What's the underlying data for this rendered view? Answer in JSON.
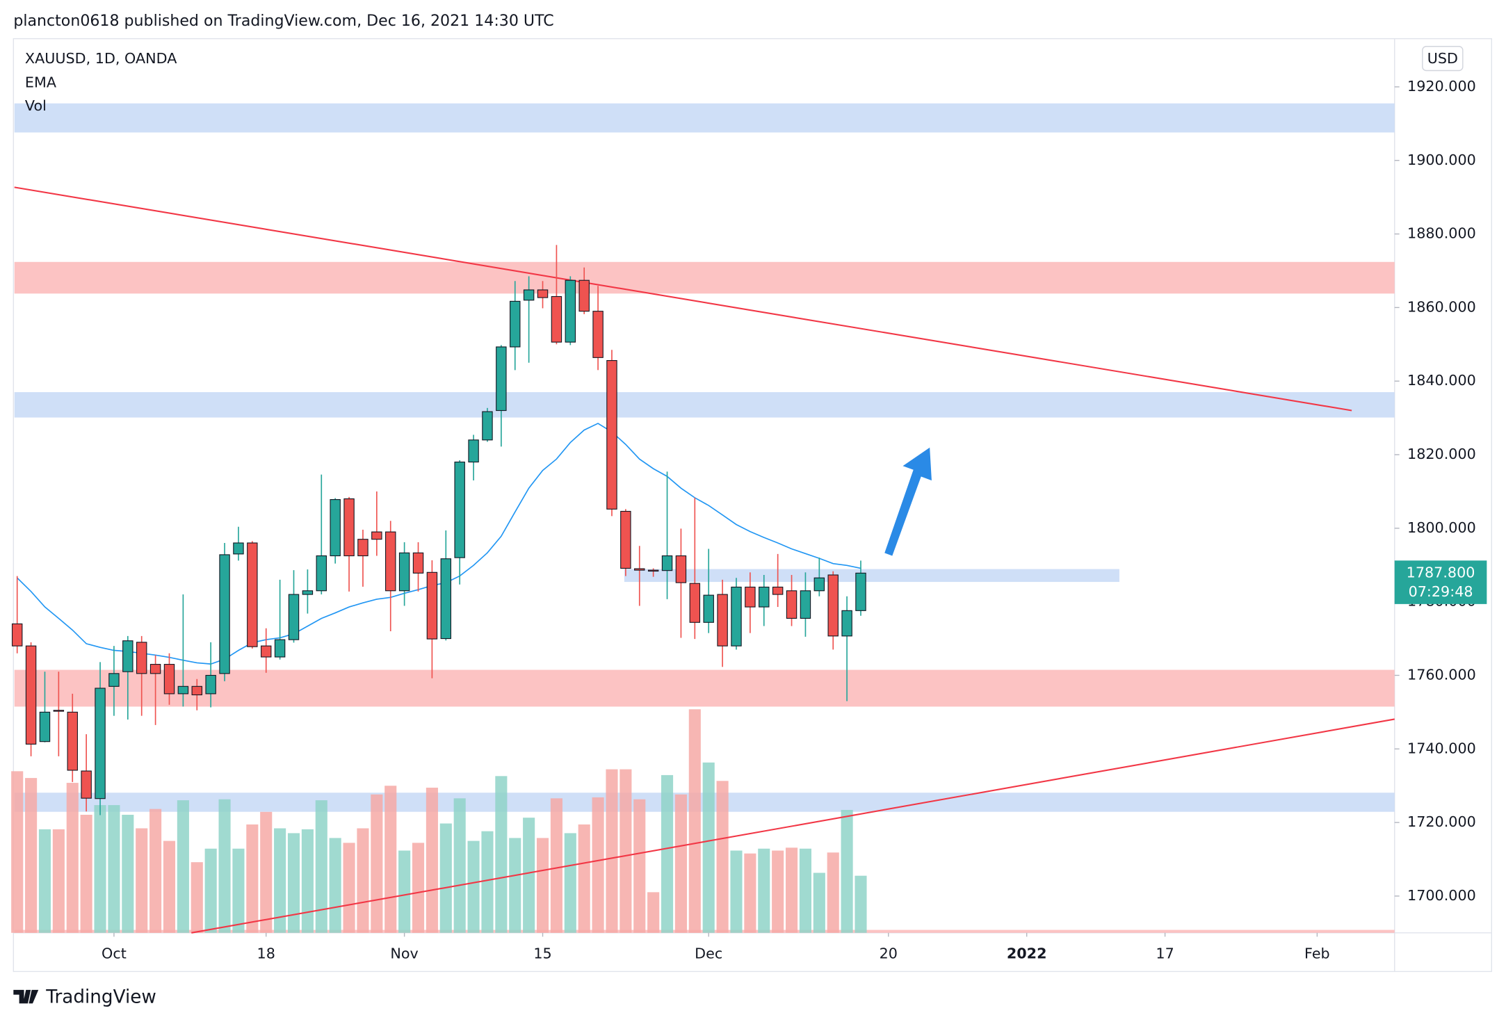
{
  "header": {
    "publisher": "plancton0618 published on TradingView.com, Dec 16, 2021 14:30 UTC"
  },
  "footer": {
    "brand": "TradingView"
  },
  "chart_data": {
    "type": "candlestick",
    "symbol": "XAUUSD, 1D, OANDA",
    "indicators": [
      "EMA",
      "Vol"
    ],
    "currency": "USD",
    "up_color": "#26a69a",
    "down_color": "#ef5350",
    "ylim": [
      1690,
      1933.1
    ],
    "yticks": [
      {
        "value": 1700,
        "label": "1700.000"
      },
      {
        "value": 1720,
        "label": "1720.000"
      },
      {
        "value": 1740,
        "label": "1740.000"
      },
      {
        "value": 1760,
        "label": "1760.000"
      },
      {
        "value": 1780,
        "label": "1780.000"
      },
      {
        "value": 1800,
        "label": "1800.000"
      },
      {
        "value": 1820,
        "label": "1820.000"
      },
      {
        "value": 1840,
        "label": "1840.000"
      },
      {
        "value": 1860,
        "label": "1860.000"
      },
      {
        "value": 1880,
        "label": "1880.000"
      },
      {
        "value": 1900,
        "label": "1900.000"
      },
      {
        "value": 1920,
        "label": "1920.000"
      }
    ],
    "xlim": [
      -0.2,
      99.6
    ],
    "xticks": [
      {
        "value": 7,
        "label": "Oct"
      },
      {
        "value": 18,
        "label": "18"
      },
      {
        "value": 28,
        "label": "Nov"
      },
      {
        "value": 38,
        "label": "15"
      },
      {
        "value": 50,
        "label": "Dec"
      },
      {
        "value": 63,
        "label": "20"
      },
      {
        "value": 73,
        "label": "2022"
      },
      {
        "value": 83,
        "label": "17"
      },
      {
        "value": 94,
        "label": "Feb"
      }
    ],
    "open": [
      1774,
      1768,
      1742,
      1750.5,
      1750,
      1734,
      1726.5,
      1757,
      1761,
      1769,
      1763,
      1763,
      1755,
      1757,
      1755,
      1760.5,
      1793,
      1796,
      1768,
      1765,
      1769.7,
      1782,
      1783,
      1792.5,
      1808,
      1797,
      1799,
      1799,
      1783,
      1793.3,
      1788,
      1770,
      1792,
      1818,
      1824,
      1832,
      1849.3,
      1862,
      1864.8,
      1863,
      1850.6,
      1867.4,
      1859,
      1845.6,
      1804.6,
      1789,
      1788.6,
      1788.5,
      1792.5,
      1785,
      1774.4,
      1782,
      1768,
      1784,
      1778.6,
      1784,
      1783,
      1775.5,
      1783,
      1787.3,
      1770.7,
      1777.6
    ],
    "high": [
      1787,
      1769,
      1761,
      1761,
      1755,
      1744,
      1763.6,
      1768,
      1770.7,
      1770.7,
      1765.5,
      1766,
      1782,
      1759,
      1769,
      1796,
      1800.4,
      1796.5,
      1772.8,
      1786,
      1788.6,
      1788.8,
      1814.6,
      1808.2,
      1808.5,
      1799.6,
      1810,
      1802,
      1796.2,
      1796.2,
      1791.3,
      1799.4,
      1818.5,
      1825.4,
      1832.7,
      1849.8,
      1867.2,
      1868.5,
      1867.2,
      1877,
      1868.5,
      1870.9,
      1865.9,
      1848.5,
      1805.2,
      1795.2,
      1789.1,
      1815.4,
      1799.9,
      1808.3,
      1794.4,
      1786,
      1786.5,
      1788,
      1787.3,
      1793,
      1787.3,
      1788,
      1792,
      1788.3,
      1781.5,
      1791.2
    ],
    "low": [
      1766,
      1738,
      1741.8,
      1738,
      1731,
      1723,
      1722,
      1749,
      1748,
      1749,
      1746.5,
      1752,
      1751.5,
      1750.5,
      1751.3,
      1758.4,
      1791.2,
      1767.3,
      1760.7,
      1764.3,
      1768.9,
      1776.8,
      1782,
      1790.4,
      1782.8,
      1784.1,
      1792.5,
      1772,
      1778.9,
      1782.8,
      1759.2,
      1769.5,
      1784.7,
      1813,
      1823.5,
      1822.2,
      1843,
      1845,
      1859.8,
      1850,
      1849.8,
      1858.2,
      1843,
      1803.3,
      1787,
      1778.9,
      1786.8,
      1780.7,
      1770.2,
      1769.9,
      1771.5,
      1762.3,
      1767,
      1771.5,
      1773.4,
      1778.6,
      1773.4,
      1770.5,
      1781.5,
      1767,
      1753,
      1776.2
    ],
    "close": [
      1768,
      1741.3,
      1750,
      1750.3,
      1734.2,
      1726.6,
      1756.5,
      1760.5,
      1769.4,
      1760.5,
      1760.5,
      1755,
      1757,
      1754.7,
      1760,
      1792.8,
      1796,
      1767.8,
      1765,
      1769.7,
      1782,
      1783,
      1792.5,
      1807.8,
      1792.5,
      1792.5,
      1797,
      1783,
      1793.3,
      1787.8,
      1769.9,
      1791.7,
      1818,
      1824,
      1831.7,
      1849.3,
      1861.7,
      1864.8,
      1862.7,
      1850.6,
      1867.4,
      1859,
      1846.4,
      1805.2,
      1789.1,
      1788.6,
      1788.4,
      1792.5,
      1785.2,
      1774.4,
      1781.8,
      1768,
      1784,
      1778.6,
      1784,
      1782,
      1775.5,
      1783,
      1786.5,
      1770.7,
      1777.6,
      1787.8
    ],
    "ema": {
      "color": "#2196f3",
      "values": [
        1786.5,
        1782.8,
        1778.6,
        1775.5,
        1772.3,
        1768.6,
        1767.6,
        1766.8,
        1766.5,
        1766.0,
        1765.5,
        1764.9,
        1764.1,
        1763.4,
        1763.1,
        1764.4,
        1766.8,
        1768.9,
        1769.7,
        1770.2,
        1771.3,
        1773.4,
        1775.5,
        1777.0,
        1778.6,
        1779.7,
        1780.7,
        1781.2,
        1782.3,
        1783.3,
        1784.4,
        1785.2,
        1787.0,
        1789.9,
        1793.3,
        1797.8,
        1804.4,
        1810.9,
        1815.7,
        1818.8,
        1823.3,
        1826.7,
        1828.5,
        1826.2,
        1822.8,
        1818.8,
        1816.2,
        1814.1,
        1810.9,
        1808.3,
        1806.2,
        1803.6,
        1801.0,
        1799.1,
        1797.5,
        1796.0,
        1794.4,
        1793.1,
        1791.8,
        1790.4,
        1789.9,
        1789.1
      ]
    },
    "volume": {
      "up_color": "#8fd3c8",
      "down_color": "#f6a9a6",
      "values": [
        167,
        160,
        107,
        107,
        155,
        122,
        132,
        132,
        122,
        108,
        128,
        95,
        137,
        73,
        87,
        138,
        87,
        112,
        125,
        108,
        103,
        107,
        137,
        98,
        93,
        108,
        143,
        152,
        85,
        93,
        150,
        113,
        139,
        95,
        105,
        162,
        98,
        119,
        98,
        139,
        103,
        112,
        140,
        169,
        169,
        138,
        42,
        163,
        143,
        231,
        176,
        157,
        85,
        82,
        87,
        85,
        88,
        87,
        62,
        83,
        127,
        59
      ]
    },
    "zones": [
      {
        "from": 1907.6,
        "to": 1915.5,
        "color": "#c7d9f6"
      },
      {
        "from": 1863.8,
        "to": 1872.4,
        "color": "#fcb9b8"
      },
      {
        "from": 1830.1,
        "to": 1837,
        "color": "#c7d9f6"
      },
      {
        "from": 1785.4,
        "to": 1788.9,
        "color": "#c7d9f6",
        "xlim": [
          43.9,
          79.7
        ]
      },
      {
        "from": 1751.5,
        "to": 1761.5,
        "color": "#fcb9b8"
      },
      {
        "from": 1722.9,
        "to": 1728.1,
        "color": "#c7d9f6"
      },
      {
        "from": 1690,
        "to": 1690.8,
        "color": "#fcb9b8"
      }
    ],
    "trendlines": [
      {
        "x": [
          -0.2,
          96.5
        ],
        "y": [
          1892.7,
          1832.0
        ],
        "color": "#f23645"
      },
      {
        "x": [
          12.6,
          99.6
        ],
        "y": [
          1690.0,
          1748.1
        ],
        "color": "#f23645"
      }
    ],
    "last_price": {
      "value": 1787.8,
      "label": "1787.800"
    },
    "countdown": "07:29:48"
  }
}
